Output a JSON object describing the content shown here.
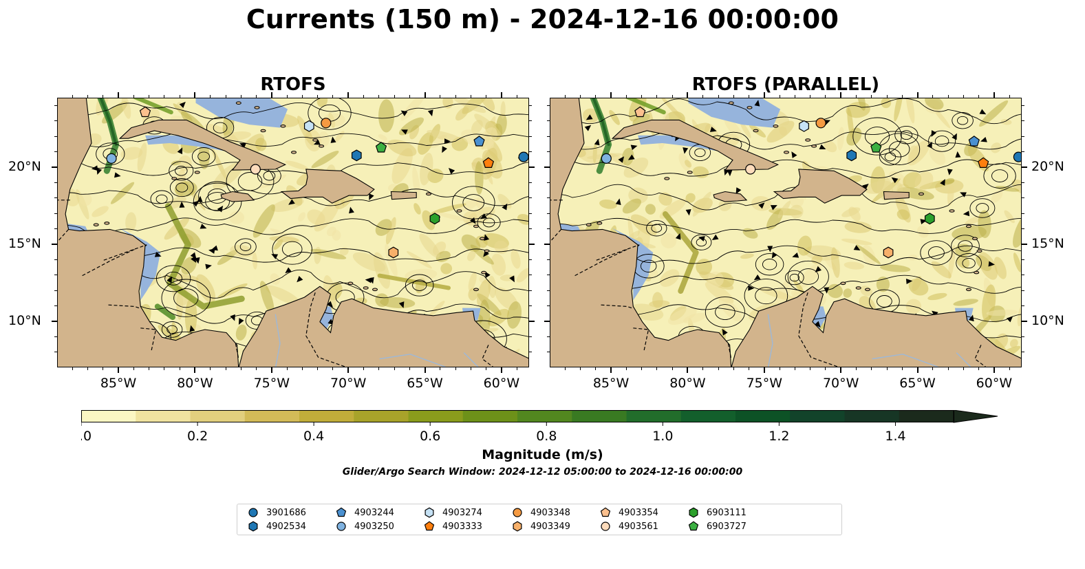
{
  "title": "Currents (150 m) - 2024-12-16 00:00:00",
  "panels": [
    {
      "title": "RTOFS"
    },
    {
      "title": "RTOFS (PARALLEL)"
    }
  ],
  "axes": {
    "lon_ticks": [
      "85°W",
      "80°W",
      "75°W",
      "70°W",
      "65°W",
      "60°W"
    ],
    "lat_ticks": [
      "20°N",
      "15°N",
      "10°N"
    ],
    "lon_range": [
      -89.0,
      -58.2
    ],
    "lat_range": [
      7.0,
      24.5
    ]
  },
  "colorbar": {
    "label": "Magnitude (m/s)",
    "ticks": [
      "0.0",
      "0.2",
      "0.4",
      "0.6",
      "0.8",
      "1.0",
      "1.2",
      "1.4"
    ],
    "range": [
      0.0,
      1.5
    ],
    "extend": "max",
    "colors": [
      "#fbf6c3",
      "#f0e3a0",
      "#e2cf7e",
      "#d3bb58",
      "#c1ad3a",
      "#a8a32a",
      "#8a9c1c",
      "#6d9119",
      "#52871f",
      "#397a22",
      "#226d2b",
      "#135f2c",
      "#0d5226",
      "#12432a",
      "#173625",
      "#1b2a1c"
    ]
  },
  "search_window": "Glider/Argo Search Window: 2024-12-12 05:00:00 to 2024-12-16 00:00:00",
  "legend": [
    {
      "id": "3901686",
      "marker": "circle",
      "color": "#1f77b4"
    },
    {
      "id": "4902534",
      "marker": "hexagon",
      "color": "#1f77b4"
    },
    {
      "id": "4903244",
      "marker": "pentagon",
      "color": "#4a90d0"
    },
    {
      "id": "4903250",
      "marker": "circle",
      "color": "#7fb2e0"
    },
    {
      "id": "4903274",
      "marker": "hexagon",
      "color": "#c6e2f5"
    },
    {
      "id": "4903333",
      "marker": "pentagon",
      "color": "#ff7f0e"
    },
    {
      "id": "4903348",
      "marker": "circle",
      "color": "#f59a42"
    },
    {
      "id": "4903349",
      "marker": "hexagon",
      "color": "#f7b06a"
    },
    {
      "id": "4903354",
      "marker": "pentagon",
      "color": "#fbc08e"
    },
    {
      "id": "4903561",
      "marker": "circle",
      "color": "#fddcbc"
    },
    {
      "id": "6903111",
      "marker": "hexagon",
      "color": "#2ca02c"
    },
    {
      "id": "6903727",
      "marker": "pentagon",
      "color": "#3cb043"
    }
  ],
  "floats": [
    {
      "id": "3901686",
      "lon": -58.6,
      "lat": 20.7
    },
    {
      "id": "4902534",
      "lon": -69.5,
      "lat": 20.8
    },
    {
      "id": "4903244",
      "lon": -61.5,
      "lat": 21.7
    },
    {
      "id": "4903250",
      "lon": -85.5,
      "lat": 20.6
    },
    {
      "id": "4903274",
      "lon": -72.6,
      "lat": 22.7
    },
    {
      "id": "4903333",
      "lon": -60.9,
      "lat": 20.3
    },
    {
      "id": "4903348",
      "lon": -71.5,
      "lat": 22.9
    },
    {
      "id": "4903349",
      "lon": -67.1,
      "lat": 14.5
    },
    {
      "id": "4903354",
      "lon": -83.3,
      "lat": 23.6
    },
    {
      "id": "4903561",
      "lon": -76.1,
      "lat": 19.9
    },
    {
      "id": "6903111",
      "lon": -64.4,
      "lat": 16.7
    },
    {
      "id": "6903727",
      "lon": -67.9,
      "lat": 21.3
    }
  ],
  "colors": {
    "land": "#d2b48c",
    "shelf": "#96b4dc",
    "streamline": "#000000",
    "frame": "#000000"
  }
}
